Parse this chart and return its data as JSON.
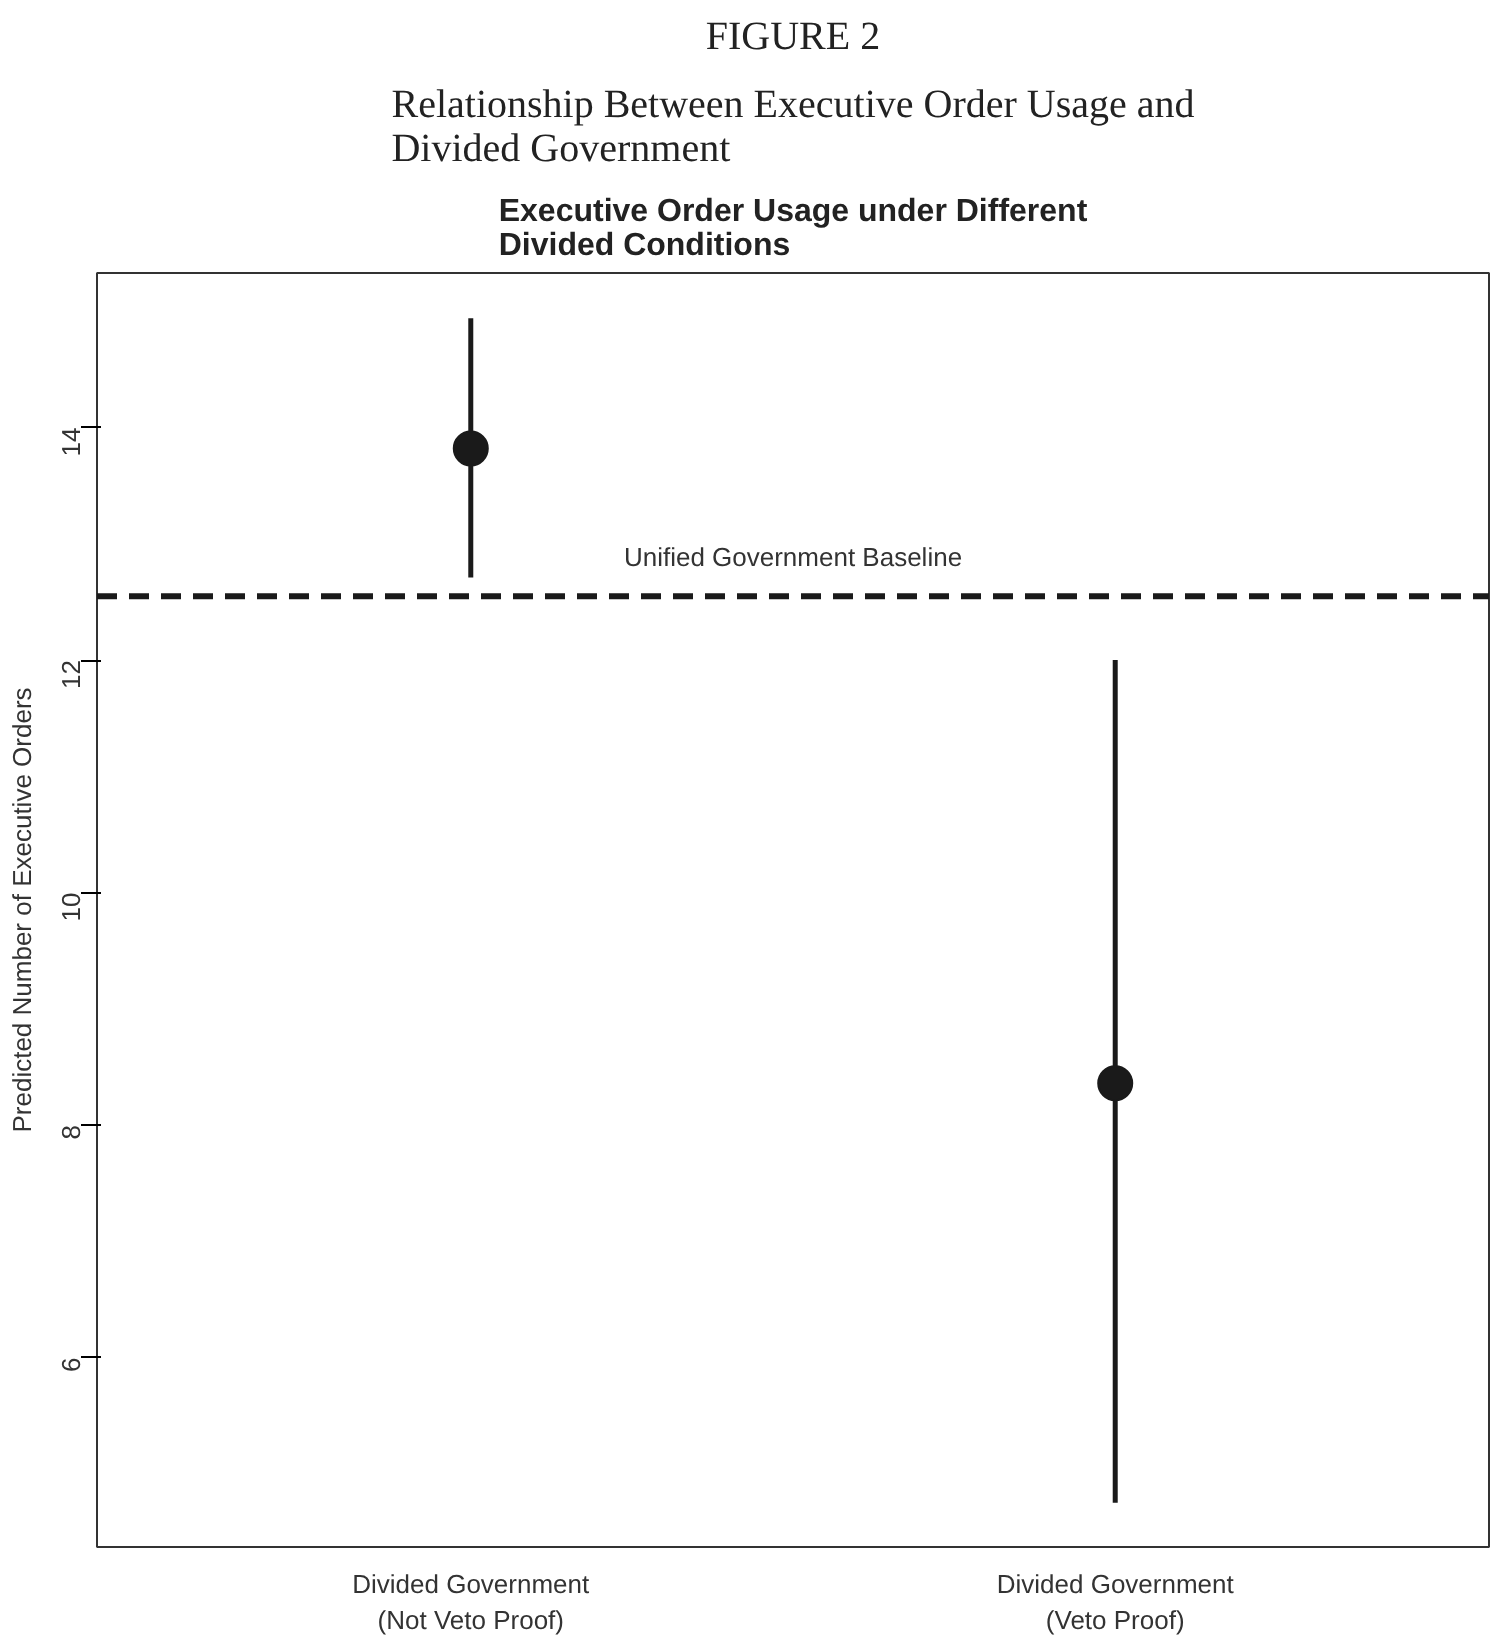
{
  "chart_data": {
    "type": "scatter",
    "title": "Executive Order Usage under Different Divided Conditions",
    "ylabel": "Predicted Number of Executive Orders",
    "annotations": [
      "FIGURE 2",
      "Relationship Between Executive Order Usage and Divided Government"
    ],
    "categories": [
      "Divided Government\n(Not Veto Proof)",
      "Divided Government\n(Veto Proof)"
    ],
    "series": [
      {
        "color": "#1a1a1a",
        "values": [
          13.82,
          8.36
        ],
        "errors": [
          [
            12.71,
            14.94
          ],
          [
            4.75,
            12.0
          ]
        ]
      }
    ],
    "ylim": [
      4.37,
      15.33
    ],
    "yticks": [
      6,
      8,
      10,
      12,
      14
    ],
    "ref_lines": [
      {
        "axis": "y",
        "value": 12.55,
        "label": "Unified Government Baseline",
        "color": "#1a1a1a",
        "line_style": "dashed"
      }
    ],
    "marker": "circle",
    "grid": false
  }
}
